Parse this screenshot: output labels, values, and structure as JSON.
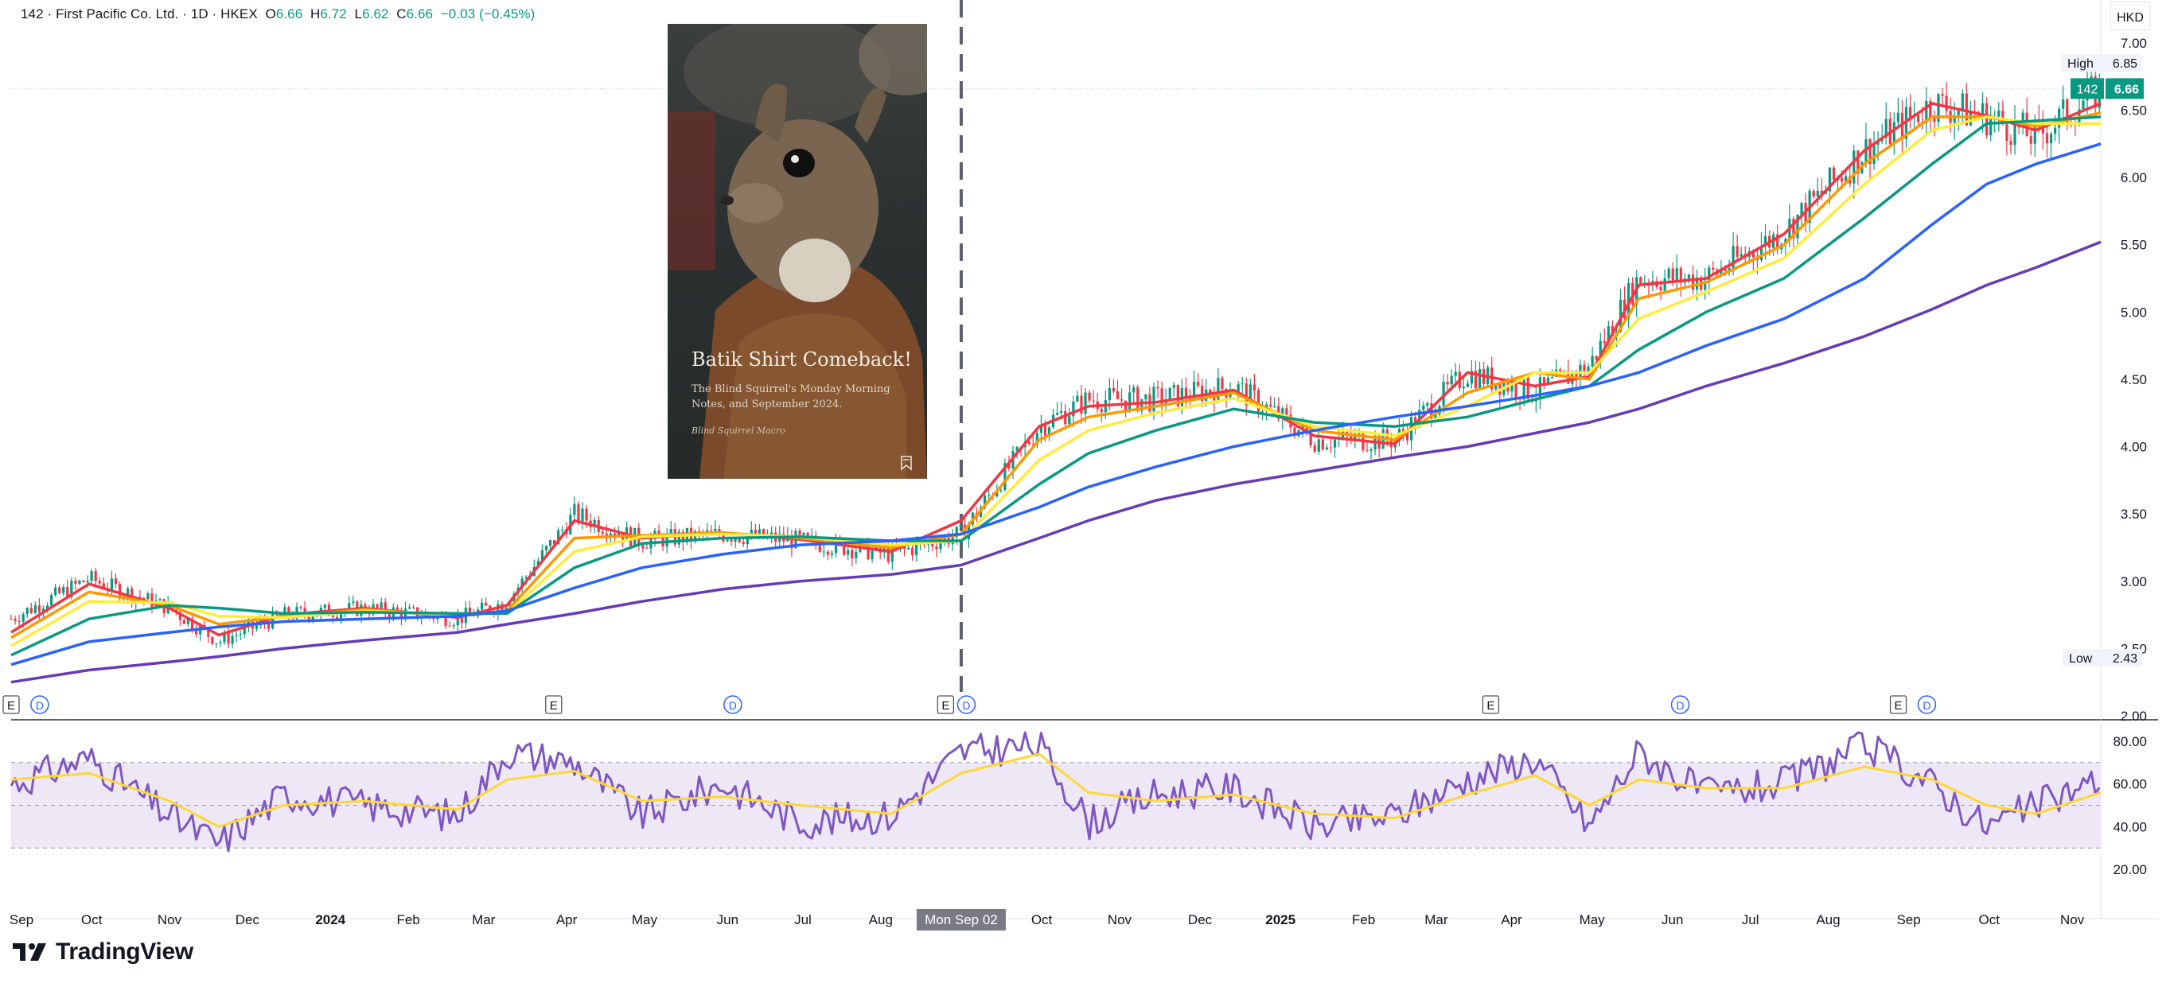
{
  "header": {
    "symbol_line": "142 · First Pacific Co. Ltd. · 1D · HKEX",
    "o_label": "O",
    "o_value": "6.66",
    "h_label": "H",
    "h_value": "6.72",
    "l_label": "L",
    "l_value": "6.62",
    "c_label": "C",
    "c_value": "6.66",
    "change": "−0.03 (−0.45%)"
  },
  "currency": "HKD",
  "price_tags": {
    "high_label": "High",
    "high_value": "6.85",
    "last_symbol": "142",
    "last_value": "6.66",
    "low_label": "Low",
    "low_value": "2.43"
  },
  "crosshair_date": "Mon Sep 02",
  "brand": "TradingView",
  "thumbnail": {
    "title": "Batik Shirt Comeback!",
    "subtitle": "The Blind Squirrel's Monday Morning Notes, and September 2024.",
    "author": "Blind Squirrel Macro"
  },
  "colors": {
    "up": "#089981",
    "down": "#f23645",
    "ema_red": "#f23645",
    "ema_orange": "#ff9800",
    "ema_yellow": "#ffeb3b",
    "ema_green": "#089981",
    "ema_blue": "#2962ff",
    "ema_purple": "#673ab7",
    "rsi": "#7e57c2",
    "rsi_ma": "#fdd835",
    "rsi_band": "#ede7f6"
  },
  "chart_data": [
    {
      "type": "line",
      "description": "daily price with moving averages",
      "x_range": [
        "2023-09-01",
        "2025-11-14"
      ],
      "ylim": [
        2.0,
        7.2
      ],
      "y_ticks": [
        "7.00",
        "6.50",
        "6.00",
        "5.50",
        "5.00",
        "4.50",
        "4.00",
        "3.50",
        "3.00",
        "2.50",
        "2.00"
      ],
      "x_ticks": [
        "Sep",
        "Oct",
        "Nov",
        "Dec",
        "2024",
        "Feb",
        "Mar",
        "Apr",
        "May",
        "Jun",
        "Jul",
        "Aug",
        "Oct",
        "Nov",
        "Dec",
        "2025",
        "Feb",
        "Mar",
        "Apr",
        "May",
        "Jun",
        "Jul",
        "Aug",
        "Sep",
        "Oct",
        "Nov"
      ],
      "high": 6.85,
      "low": 2.43,
      "last": 6.66,
      "series": [
        {
          "key": "price",
          "x": [
            "2023-09-01",
            "2023-10-01",
            "2023-11-01",
            "2023-11-20",
            "2023-12-15",
            "2024-01-15",
            "2024-02-20",
            "2024-03-10",
            "2024-04-05",
            "2024-05-01",
            "2024-06-01",
            "2024-07-01",
            "2024-08-05",
            "2024-09-01",
            "2024-10-01",
            "2024-10-20",
            "2024-11-15",
            "2024-12-15",
            "2025-01-15",
            "2025-02-15",
            "2025-03-15",
            "2025-04-10",
            "2025-05-01",
            "2025-05-20",
            "2025-06-15",
            "2025-07-15",
            "2025-08-15",
            "2025-09-10",
            "2025-10-01",
            "2025-10-20",
            "2025-11-14"
          ],
          "y": [
            2.72,
            3.02,
            2.8,
            2.55,
            2.75,
            2.8,
            2.72,
            2.85,
            3.5,
            3.3,
            3.35,
            3.3,
            3.2,
            3.35,
            4.15,
            4.35,
            4.35,
            4.45,
            4.05,
            4.05,
            4.55,
            4.4,
            4.6,
            5.25,
            5.25,
            5.6,
            6.2,
            6.55,
            6.45,
            6.3,
            6.66
          ]
        },
        {
          "key": "ema_red",
          "x": [
            "2023-09-01",
            "2023-10-01",
            "2023-11-01",
            "2023-11-20",
            "2023-12-15",
            "2024-01-15",
            "2024-02-20",
            "2024-03-10",
            "2024-04-05",
            "2024-05-01",
            "2024-06-01",
            "2024-07-01",
            "2024-08-05",
            "2024-09-01",
            "2024-10-01",
            "2024-10-20",
            "2024-11-15",
            "2024-12-15",
            "2025-01-15",
            "2025-02-15",
            "2025-03-15",
            "2025-04-10",
            "2025-05-01",
            "2025-05-20",
            "2025-06-15",
            "2025-07-15",
            "2025-08-15",
            "2025-09-10",
            "2025-10-01",
            "2025-10-20",
            "2025-11-14"
          ],
          "y": [
            2.62,
            2.98,
            2.8,
            2.6,
            2.75,
            2.8,
            2.73,
            2.82,
            3.45,
            3.32,
            3.36,
            3.31,
            3.22,
            3.45,
            4.15,
            4.3,
            4.33,
            4.42,
            4.08,
            4.02,
            4.55,
            4.45,
            4.52,
            5.2,
            5.25,
            5.58,
            6.2,
            6.55,
            6.46,
            6.35,
            6.55
          ]
        },
        {
          "key": "ema_orange",
          "x": [
            "2023-09-01",
            "2023-10-01",
            "2023-11-01",
            "2023-11-20",
            "2023-12-15",
            "2024-01-15",
            "2024-02-20",
            "2024-03-10",
            "2024-04-05",
            "2024-05-01",
            "2024-06-01",
            "2024-07-01",
            "2024-08-05",
            "2024-09-01",
            "2024-10-01",
            "2024-10-20",
            "2024-11-15",
            "2024-12-15",
            "2025-01-15",
            "2025-02-15",
            "2025-03-15",
            "2025-04-10",
            "2025-05-01",
            "2025-05-20",
            "2025-06-15",
            "2025-07-15",
            "2025-08-15",
            "2025-09-10",
            "2025-10-01",
            "2025-10-20",
            "2025-11-14"
          ],
          "y": [
            2.58,
            2.92,
            2.82,
            2.68,
            2.74,
            2.79,
            2.74,
            2.78,
            3.32,
            3.34,
            3.36,
            3.32,
            3.25,
            3.35,
            4.05,
            4.22,
            4.3,
            4.4,
            4.12,
            4.05,
            4.4,
            4.55,
            4.5,
            5.1,
            5.22,
            5.5,
            6.1,
            6.45,
            6.45,
            6.38,
            6.48
          ]
        },
        {
          "key": "ema_yellow",
          "x": [
            "2023-09-01",
            "2023-10-01",
            "2023-11-01",
            "2023-11-20",
            "2023-12-15",
            "2024-01-15",
            "2024-02-20",
            "2024-03-10",
            "2024-04-05",
            "2024-05-01",
            "2024-06-01",
            "2024-07-01",
            "2024-08-05",
            "2024-09-01",
            "2024-10-01",
            "2024-10-20",
            "2024-11-15",
            "2024-12-15",
            "2025-01-15",
            "2025-02-15",
            "2025-03-15",
            "2025-04-10",
            "2025-05-01",
            "2025-05-20",
            "2025-06-15",
            "2025-07-15",
            "2025-08-15",
            "2025-09-10",
            "2025-10-01",
            "2025-10-20",
            "2025-11-14"
          ],
          "y": [
            2.52,
            2.85,
            2.84,
            2.74,
            2.73,
            2.78,
            2.75,
            2.76,
            3.22,
            3.33,
            3.35,
            3.33,
            3.27,
            3.3,
            3.9,
            4.12,
            4.25,
            4.36,
            4.15,
            4.08,
            4.3,
            4.55,
            4.55,
            4.95,
            5.15,
            5.4,
            5.95,
            6.35,
            6.45,
            6.4,
            6.4
          ]
        },
        {
          "key": "ema_green",
          "x": [
            "2023-09-01",
            "2023-10-01",
            "2023-11-01",
            "2023-11-20",
            "2023-12-15",
            "2024-01-15",
            "2024-02-20",
            "2024-03-10",
            "2024-04-05",
            "2024-05-01",
            "2024-06-01",
            "2024-07-01",
            "2024-08-05",
            "2024-09-01",
            "2024-10-01",
            "2024-10-20",
            "2024-11-15",
            "2024-12-15",
            "2025-01-15",
            "2025-02-15",
            "2025-03-15",
            "2025-04-10",
            "2025-05-01",
            "2025-05-20",
            "2025-06-15",
            "2025-07-15",
            "2025-08-15",
            "2025-09-10",
            "2025-10-01",
            "2025-10-20",
            "2025-11-14"
          ],
          "y": [
            2.45,
            2.72,
            2.82,
            2.8,
            2.76,
            2.77,
            2.76,
            2.76,
            3.1,
            3.28,
            3.32,
            3.33,
            3.3,
            3.3,
            3.72,
            3.95,
            4.12,
            4.28,
            4.18,
            4.15,
            4.22,
            4.35,
            4.45,
            4.72,
            5.0,
            5.25,
            5.7,
            6.1,
            6.4,
            6.42,
            6.45
          ]
        },
        {
          "key": "ema_blue",
          "x": [
            "2023-09-01",
            "2023-10-01",
            "2023-11-01",
            "2023-11-20",
            "2023-12-15",
            "2024-01-15",
            "2024-02-20",
            "2024-03-10",
            "2024-04-05",
            "2024-05-01",
            "2024-06-01",
            "2024-07-01",
            "2024-08-05",
            "2024-09-01",
            "2024-10-01",
            "2024-10-20",
            "2024-11-15",
            "2024-12-15",
            "2025-01-15",
            "2025-02-15",
            "2025-03-15",
            "2025-04-10",
            "2025-05-01",
            "2025-05-20",
            "2025-06-15",
            "2025-07-15",
            "2025-08-15",
            "2025-09-10",
            "2025-10-01",
            "2025-10-20",
            "2025-11-14"
          ],
          "y": [
            2.38,
            2.55,
            2.62,
            2.66,
            2.7,
            2.72,
            2.74,
            2.78,
            2.95,
            3.1,
            3.2,
            3.27,
            3.3,
            3.35,
            3.55,
            3.7,
            3.85,
            4.0,
            4.12,
            4.22,
            4.3,
            4.38,
            4.45,
            4.55,
            4.75,
            4.95,
            5.25,
            5.65,
            5.95,
            6.1,
            6.25
          ]
        },
        {
          "key": "ema_purple",
          "x": [
            "2023-09-01",
            "2023-10-01",
            "2023-11-01",
            "2023-11-20",
            "2023-12-15",
            "2024-01-15",
            "2024-02-20",
            "2024-03-10",
            "2024-04-05",
            "2024-05-01",
            "2024-06-01",
            "2024-07-01",
            "2024-08-05",
            "2024-09-01",
            "2024-10-01",
            "2024-10-20",
            "2024-11-15",
            "2024-12-15",
            "2025-01-15",
            "2025-02-15",
            "2025-03-15",
            "2025-04-10",
            "2025-05-01",
            "2025-05-20",
            "2025-06-15",
            "2025-07-15",
            "2025-08-15",
            "2025-09-10",
            "2025-10-01",
            "2025-10-20",
            "2025-11-14"
          ],
          "y": [
            2.25,
            2.34,
            2.4,
            2.44,
            2.5,
            2.56,
            2.62,
            2.68,
            2.76,
            2.85,
            2.94,
            3.0,
            3.05,
            3.12,
            3.32,
            3.45,
            3.6,
            3.72,
            3.82,
            3.92,
            4.0,
            4.1,
            4.18,
            4.28,
            4.45,
            4.62,
            4.82,
            5.02,
            5.2,
            5.33,
            5.52
          ]
        }
      ]
    },
    {
      "type": "line",
      "description": "RSI panel",
      "ylim": [
        10,
        90
      ],
      "y_ticks": [
        "80.00",
        "60.00",
        "40.00",
        "20.00"
      ],
      "band": [
        30,
        70
      ],
      "midline": 50,
      "series": [
        {
          "key": "rsi",
          "x": [
            "2023-09-01",
            "2023-10-01",
            "2023-11-01",
            "2023-11-20",
            "2023-12-15",
            "2024-01-15",
            "2024-02-20",
            "2024-03-10",
            "2024-04-05",
            "2024-05-01",
            "2024-06-01",
            "2024-07-01",
            "2024-08-05",
            "2024-09-01",
            "2024-10-01",
            "2024-10-20",
            "2024-11-15",
            "2024-12-15",
            "2025-01-15",
            "2025-02-15",
            "2025-03-15",
            "2025-04-10",
            "2025-05-01",
            "2025-05-20",
            "2025-06-15",
            "2025-07-15",
            "2025-08-15",
            "2025-09-10",
            "2025-10-01",
            "2025-10-20",
            "2025-11-14"
          ],
          "y": [
            60,
            72,
            45,
            32,
            55,
            50,
            45,
            75,
            70,
            45,
            60,
            42,
            45,
            75,
            78,
            42,
            55,
            58,
            40,
            45,
            62,
            72,
            40,
            75,
            55,
            60,
            78,
            60,
            40,
            50,
            62
          ]
        },
        {
          "key": "rsi_ma",
          "x": [
            "2023-09-01",
            "2023-10-01",
            "2023-11-01",
            "2023-11-20",
            "2023-12-15",
            "2024-01-15",
            "2024-02-20",
            "2024-03-10",
            "2024-04-05",
            "2024-05-01",
            "2024-06-01",
            "2024-07-01",
            "2024-08-05",
            "2024-09-01",
            "2024-10-01",
            "2024-10-20",
            "2024-11-15",
            "2024-12-15",
            "2025-01-15",
            "2025-02-15",
            "2025-03-15",
            "2025-04-10",
            "2025-05-01",
            "2025-05-20",
            "2025-06-15",
            "2025-07-15",
            "2025-08-15",
            "2025-09-10",
            "2025-10-01",
            "2025-10-20",
            "2025-11-14"
          ],
          "y": [
            62,
            65,
            52,
            40,
            50,
            52,
            48,
            62,
            66,
            52,
            54,
            50,
            46,
            65,
            74,
            56,
            52,
            55,
            46,
            44,
            55,
            64,
            50,
            62,
            58,
            58,
            68,
            62,
            50,
            46,
            56
          ]
        }
      ]
    }
  ]
}
